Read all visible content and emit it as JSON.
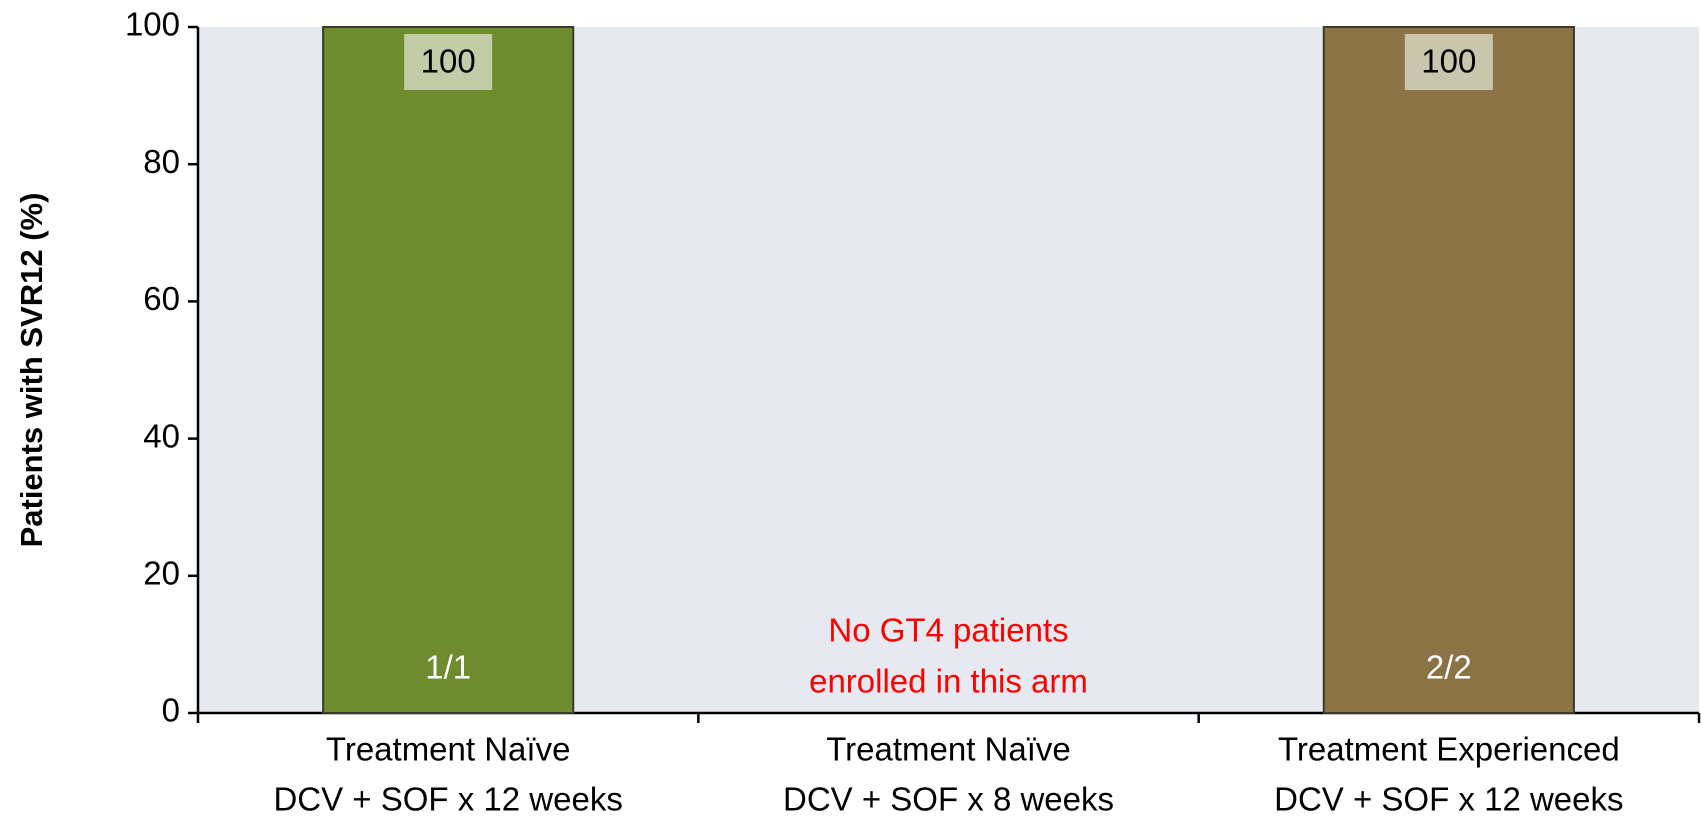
{
  "chart_data": {
    "type": "bar",
    "ylabel": "Patients with SVR12 (%)",
    "categories": [
      [
        "Treatment Naïve",
        "DCV + SOF x 12 weeks"
      ],
      [
        "Treatment Naïve",
        "DCV + SOF x 8 weeks"
      ],
      [
        "Treatment Experienced",
        "DCV + SOF x 12 weeks"
      ]
    ],
    "values": [
      100,
      null,
      100
    ],
    "colors": [
      "#6e8b2e",
      null,
      "#8b7345"
    ],
    "bar_labels": [
      "1/1",
      null,
      "2/2"
    ],
    "annotation": [
      "No GT4  patients",
      "enrolled in this arm"
    ],
    "ylim": [
      0,
      100
    ],
    "yticks": [
      0,
      20,
      40,
      60,
      80,
      100
    ]
  }
}
